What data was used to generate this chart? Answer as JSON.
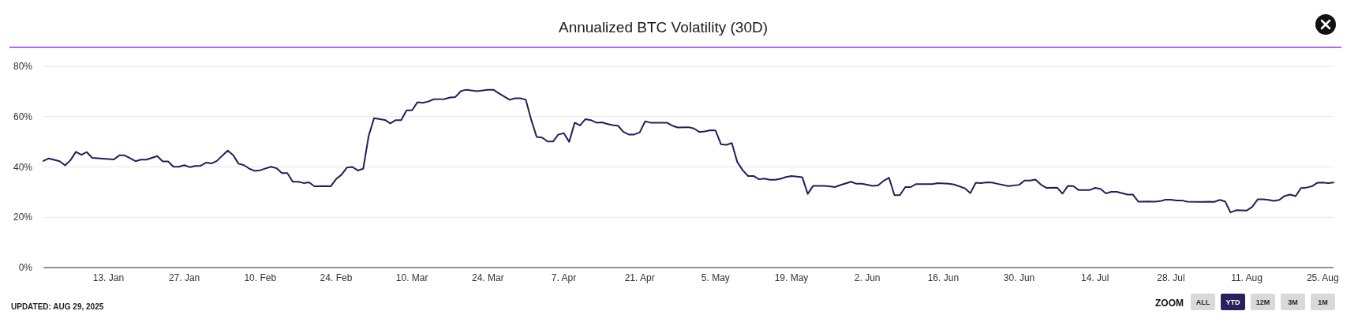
{
  "chart_data": {
    "type": "line",
    "title": "Annualized BTC Volatility (30D)",
    "x": [
      "2025-01-01",
      "2025-01-02",
      "2025-01-04",
      "2025-01-05",
      "2025-01-06",
      "2025-01-07",
      "2025-01-08",
      "2025-01-09",
      "2025-01-10",
      "2025-01-12",
      "2025-01-14",
      "2025-01-15",
      "2025-01-16",
      "2025-01-18",
      "2025-01-19",
      "2025-01-20",
      "2025-01-22",
      "2025-01-23",
      "2025-01-24",
      "2025-01-25",
      "2025-01-26",
      "2025-01-27",
      "2025-01-28",
      "2025-01-29",
      "2025-01-30",
      "2025-01-31",
      "2025-02-01",
      "2025-02-02",
      "2025-02-03",
      "2025-02-04",
      "2025-02-05",
      "2025-02-06",
      "2025-02-07",
      "2025-02-08",
      "2025-02-09",
      "2025-02-10",
      "2025-02-11",
      "2025-02-12",
      "2025-02-13",
      "2025-02-14",
      "2025-02-15",
      "2025-02-16",
      "2025-02-17",
      "2025-02-18",
      "2025-02-19",
      "2025-02-20",
      "2025-02-22",
      "2025-02-23",
      "2025-02-24",
      "2025-02-25",
      "2025-02-26",
      "2025-02-27",
      "2025-02-28",
      "2025-03-01",
      "2025-03-02",
      "2025-03-03",
      "2025-03-05",
      "2025-03-06",
      "2025-03-07",
      "2025-03-08",
      "2025-03-09",
      "2025-03-10",
      "2025-03-11",
      "2025-03-12",
      "2025-03-13",
      "2025-03-14",
      "2025-03-16",
      "2025-03-17",
      "2025-03-18",
      "2025-03-19",
      "2025-03-20",
      "2025-03-22",
      "2025-03-24",
      "2025-03-25",
      "2025-03-26",
      "2025-03-28",
      "2025-03-29",
      "2025-03-30",
      "2025-03-31",
      "2025-04-01",
      "2025-04-02",
      "2025-04-03",
      "2025-04-04",
      "2025-04-05",
      "2025-04-06",
      "2025-04-07",
      "2025-04-08",
      "2025-04-09",
      "2025-04-10",
      "2025-04-11",
      "2025-04-12",
      "2025-04-13",
      "2025-04-14",
      "2025-04-15",
      "2025-04-16",
      "2025-04-17",
      "2025-04-18",
      "2025-04-19",
      "2025-04-20",
      "2025-04-21",
      "2025-04-22",
      "2025-04-23",
      "2025-04-26",
      "2025-04-27",
      "2025-04-28",
      "2025-04-30",
      "2025-05-01",
      "2025-05-02",
      "2025-05-03",
      "2025-05-04",
      "2025-05-05",
      "2025-05-06",
      "2025-05-07",
      "2025-05-08",
      "2025-05-09",
      "2025-05-10",
      "2025-05-11",
      "2025-05-12",
      "2025-05-13",
      "2025-05-14",
      "2025-05-15",
      "2025-05-16",
      "2025-05-17",
      "2025-05-18",
      "2025-05-19",
      "2025-05-21",
      "2025-05-22",
      "2025-05-23",
      "2025-05-25",
      "2025-05-26",
      "2025-05-27",
      "2025-05-28",
      "2025-05-30",
      "2025-05-31",
      "2025-06-01",
      "2025-06-03",
      "2025-06-04",
      "2025-06-05",
      "2025-06-06",
      "2025-06-07",
      "2025-06-08",
      "2025-06-09",
      "2025-06-10",
      "2025-06-11",
      "2025-06-14",
      "2025-06-15",
      "2025-06-17",
      "2025-06-18",
      "2025-06-20",
      "2025-06-21",
      "2025-06-22",
      "2025-06-23",
      "2025-06-24",
      "2025-06-25",
      "2025-06-26",
      "2025-06-28",
      "2025-06-30",
      "2025-07-01",
      "2025-07-02",
      "2025-07-03",
      "2025-07-04",
      "2025-07-05",
      "2025-07-07",
      "2025-07-08",
      "2025-07-09",
      "2025-07-10",
      "2025-07-11",
      "2025-07-13",
      "2025-07-14",
      "2025-07-15",
      "2025-07-16",
      "2025-07-17",
      "2025-07-18",
      "2025-07-20",
      "2025-07-21",
      "2025-07-22",
      "2025-07-24",
      "2025-07-25",
      "2025-07-26",
      "2025-07-27",
      "2025-07-28",
      "2025-07-29",
      "2025-07-30",
      "2025-07-31",
      "2025-08-02",
      "2025-08-04",
      "2025-08-05",
      "2025-08-06",
      "2025-08-07",
      "2025-08-08",
      "2025-08-09",
      "2025-08-11",
      "2025-08-12",
      "2025-08-13",
      "2025-08-14",
      "2025-08-15",
      "2025-08-16",
      "2025-08-17",
      "2025-08-18",
      "2025-08-19",
      "2025-08-20",
      "2025-08-21",
      "2025-08-22",
      "2025-08-23",
      "2025-08-24",
      "2025-08-25",
      "2025-08-26",
      "2025-08-27"
    ],
    "series": [
      {
        "color": "#231d5c",
        "values": [
          42.4,
          43.4,
          42.3,
          40.6,
          42.7,
          46.0,
          44.8,
          45.9,
          43.6,
          43.3,
          43.0,
          44.6,
          44.6,
          42.3,
          42.9,
          42.9,
          44.3,
          42.2,
          42.2,
          40.1,
          40.1,
          40.7,
          39.9,
          40.4,
          40.5,
          41.7,
          41.4,
          42.4,
          44.5,
          46.5,
          44.7,
          41.3,
          40.7,
          39.3,
          38.4,
          38.7,
          39.4,
          40.1,
          39.5,
          37.6,
          37.6,
          34.1,
          34.1,
          33.6,
          33.9,
          32.3,
          32.4,
          32.3,
          35.2,
          36.9,
          39.8,
          40.0,
          38.6,
          39.3,
          52.3,
          59.4,
          58.7,
          57.3,
          58.6,
          58.6,
          62.5,
          62.5,
          65.7,
          65.5,
          66.0,
          66.9,
          67.0,
          67.6,
          67.8,
          70.1,
          70.7,
          70.1,
          70.7,
          70.7,
          69.3,
          66.7,
          67.3,
          67.3,
          66.7,
          58.7,
          51.9,
          51.7,
          50.1,
          50.1,
          52.9,
          53.4,
          50.0,
          57.6,
          56.5,
          59.0,
          58.6,
          57.6,
          57.7,
          57.1,
          56.6,
          56.4,
          53.9,
          52.9,
          52.9,
          53.7,
          58.1,
          57.6,
          57.6,
          56.4,
          55.7,
          55.8,
          55.3,
          53.9,
          54.1,
          54.6,
          54.5,
          49.0,
          48.8,
          49.5,
          42.0,
          38.7,
          36.4,
          36.4,
          35.1,
          35.4,
          34.9,
          34.9,
          35.3,
          36.0,
          36.4,
          35.9,
          29.3,
          32.5,
          32.5,
          32.3,
          32.0,
          32.8,
          34.1,
          33.3,
          33.3,
          32.5,
          32.7,
          34.5,
          35.7,
          28.8,
          28.8,
          32.0,
          32.0,
          33.2,
          33.2,
          33.6,
          33.3,
          33.0,
          31.5,
          29.6,
          33.7,
          33.6,
          33.9,
          33.8,
          33.3,
          32.4,
          32.9,
          34.6,
          34.6,
          35.0,
          33.0,
          31.7,
          31.8,
          29.4,
          32.5,
          32.4,
          30.8,
          30.8,
          31.7,
          31.3,
          29.5,
          30.1,
          30.1,
          29.0,
          29.0,
          26.2,
          26.3,
          26.2,
          26.4,
          27.0,
          27.0,
          26.7,
          26.7,
          26.2,
          26.1,
          26.2,
          26.1,
          26.9,
          26.3,
          21.9,
          22.8,
          22.7,
          24.1,
          27.1,
          27.1,
          26.9,
          26.5,
          26.9,
          28.5,
          29.0,
          28.4,
          31.6,
          31.8,
          32.3,
          33.7,
          33.8,
          33.6,
          33.8
        ]
      }
    ],
    "xlim": [
      "2025-01-01",
      "2025-08-27"
    ],
    "xticks": [
      {
        "value": "2025-01-13",
        "label": "13. Jan"
      },
      {
        "value": "2025-01-27",
        "label": "27. Jan"
      },
      {
        "value": "2025-02-10",
        "label": "10. Feb"
      },
      {
        "value": "2025-02-24",
        "label": "24. Feb"
      },
      {
        "value": "2025-03-10",
        "label": "10. Mar"
      },
      {
        "value": "2025-03-24",
        "label": "24. Mar"
      },
      {
        "value": "2025-04-07",
        "label": "7. Apr"
      },
      {
        "value": "2025-04-21",
        "label": "21. Apr"
      },
      {
        "value": "2025-05-05",
        "label": "5. May"
      },
      {
        "value": "2025-05-19",
        "label": "19. May"
      },
      {
        "value": "2025-06-02",
        "label": "2. Jun"
      },
      {
        "value": "2025-06-16",
        "label": "16. Jun"
      },
      {
        "value": "2025-06-30",
        "label": "30. Jun"
      },
      {
        "value": "2025-07-14",
        "label": "14. Jul"
      },
      {
        "value": "2025-07-28",
        "label": "28. Jul"
      },
      {
        "value": "2025-08-11",
        "label": "11. Aug"
      },
      {
        "value": "2025-08-25",
        "label": "25. Aug"
      }
    ],
    "ylim": [
      0,
      80
    ],
    "yticks": [
      {
        "value": 0,
        "label": "0%"
      },
      {
        "value": 20,
        "label": "20%"
      },
      {
        "value": 40,
        "label": "40%"
      },
      {
        "value": 60,
        "label": "60%"
      },
      {
        "value": 80,
        "label": "80%"
      }
    ],
    "grid": "y",
    "annotations": [
      "UPDATED: AUG 29, 2025",
      "ZOOM",
      "ALL",
      "YTD",
      "12M",
      "3M",
      "1M"
    ]
  }
}
